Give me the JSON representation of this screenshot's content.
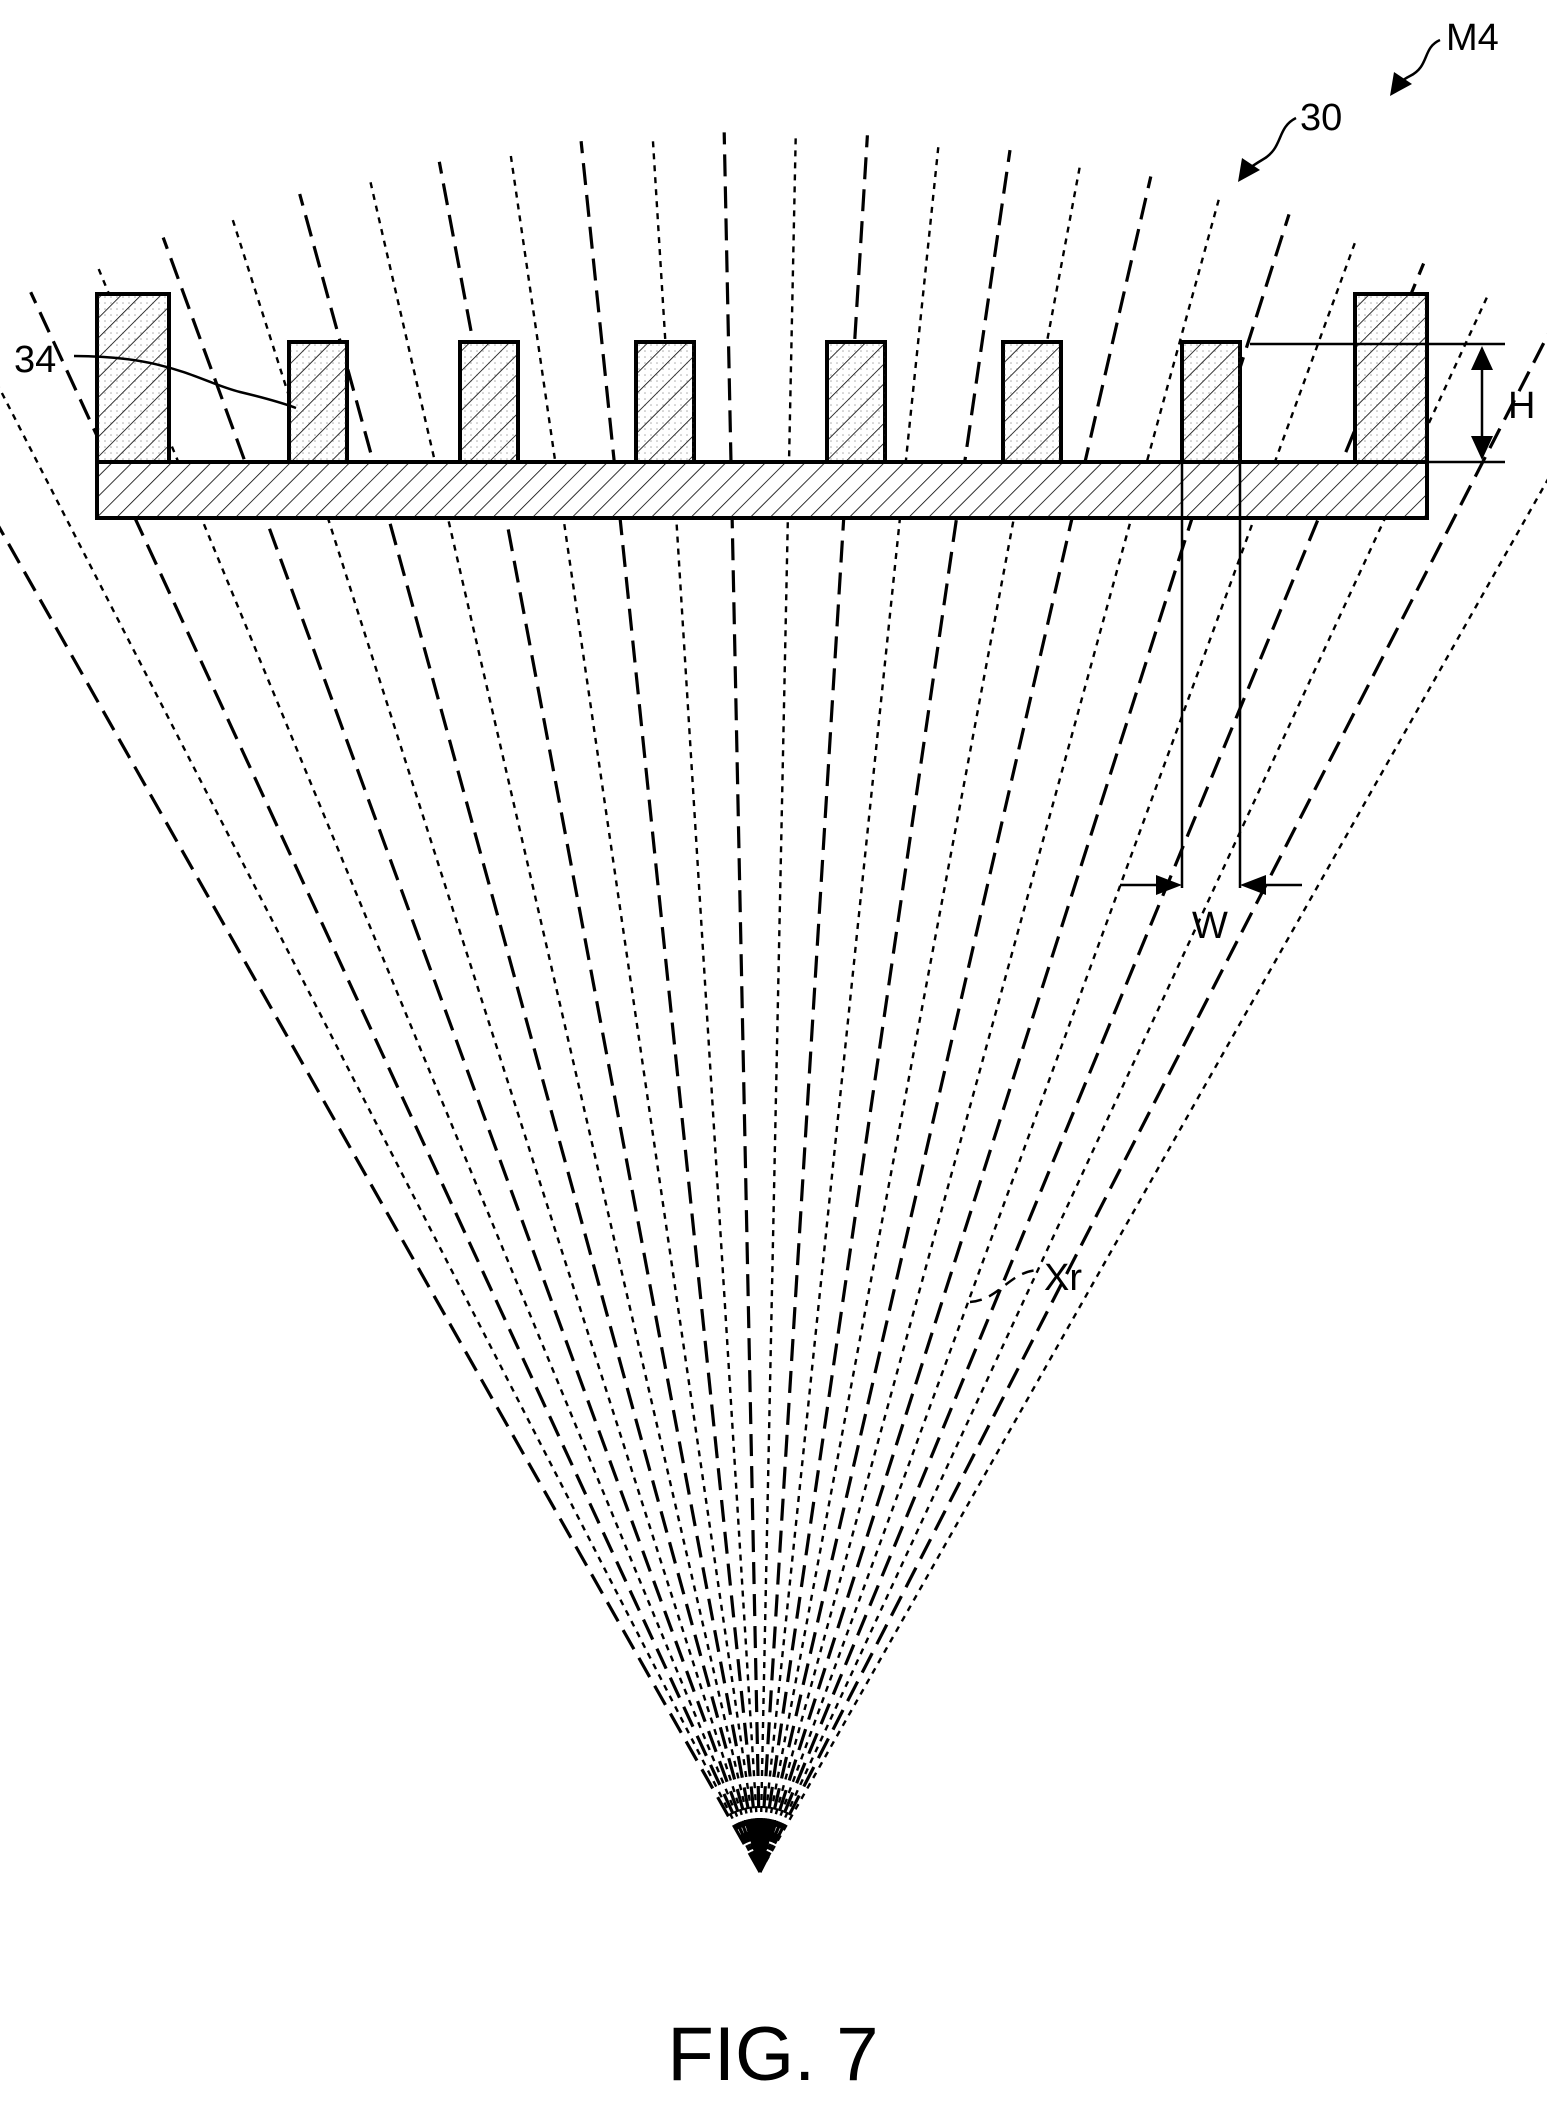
{
  "labels": {
    "assembly": "M4",
    "grid": "30",
    "septum": "34",
    "height": "H",
    "width": "W",
    "xray": "Xr"
  },
  "caption": "FIG. 7",
  "colors": {
    "ink": "#000000",
    "fill": "#ffffff"
  },
  "diagram": {
    "septa_count": 6,
    "end_walls": 2,
    "fan_ray_count": 26
  }
}
